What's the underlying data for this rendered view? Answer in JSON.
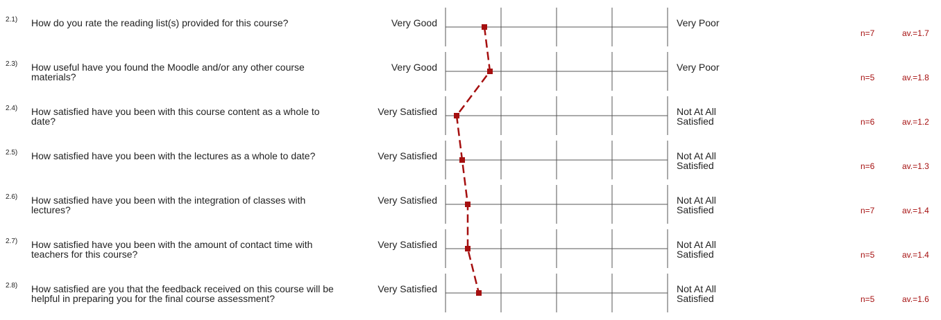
{
  "chart_data": {
    "type": "profile",
    "xlim": [
      1,
      5
    ],
    "xticks": [
      1,
      2,
      3,
      4,
      5
    ],
    "color": "#a50f0f",
    "items": [
      {
        "number": "2.1)",
        "question": "How do you rate the reading list(s) provided for this course?",
        "left": "Very Good",
        "right": "Very Poor",
        "n": "n=7"
      },
      {
        "number": "2.3)",
        "question": "How useful have you found the Moodle and/or any other course materials?",
        "left": "Very Good",
        "right": "Very Poor",
        "n": "n=5"
      },
      {
        "number": "2.4)",
        "question": "How satisfied have you been with this course content as a whole to date?",
        "left": "Very Satisfied",
        "right": "Not At All Satisfied",
        "n": "n=6"
      },
      {
        "number": "2.5)",
        "question": "How satisfied have you been with the lectures as a whole to date?",
        "left": "Very Satisfied",
        "right": "Not At All Satisfied",
        "n": "n=6"
      },
      {
        "number": "2.6)",
        "question": "How satisfied have you been with the integration of classes with lectures?",
        "left": "Very Satisfied",
        "right": "Not At All Satisfied",
        "n": "n=7"
      },
      {
        "number": "2.7)",
        "question": "How satisfied have you been with the amount of contact time with teachers for this course?",
        "left": "Very Satisfied",
        "right": "Not At All Satisfied",
        "n": "n=5"
      },
      {
        "number": "2.8)",
        "question": "How satisfied are you that the feedback received on this course will be helpful in preparing you for the final course assessment?",
        "left": "Very Satisfied",
        "right": "Not At All Satisfied",
        "n": "n=5"
      }
    ],
    "values": [
      1.7,
      1.8,
      1.2,
      1.3,
      1.4,
      1.4,
      1.6
    ],
    "value_labels": [
      "av.=1.7",
      "av.=1.8",
      "av.=1.2",
      "av.=1.3",
      "av.=1.4",
      "av.=1.4",
      "av.=1.6"
    ]
  }
}
